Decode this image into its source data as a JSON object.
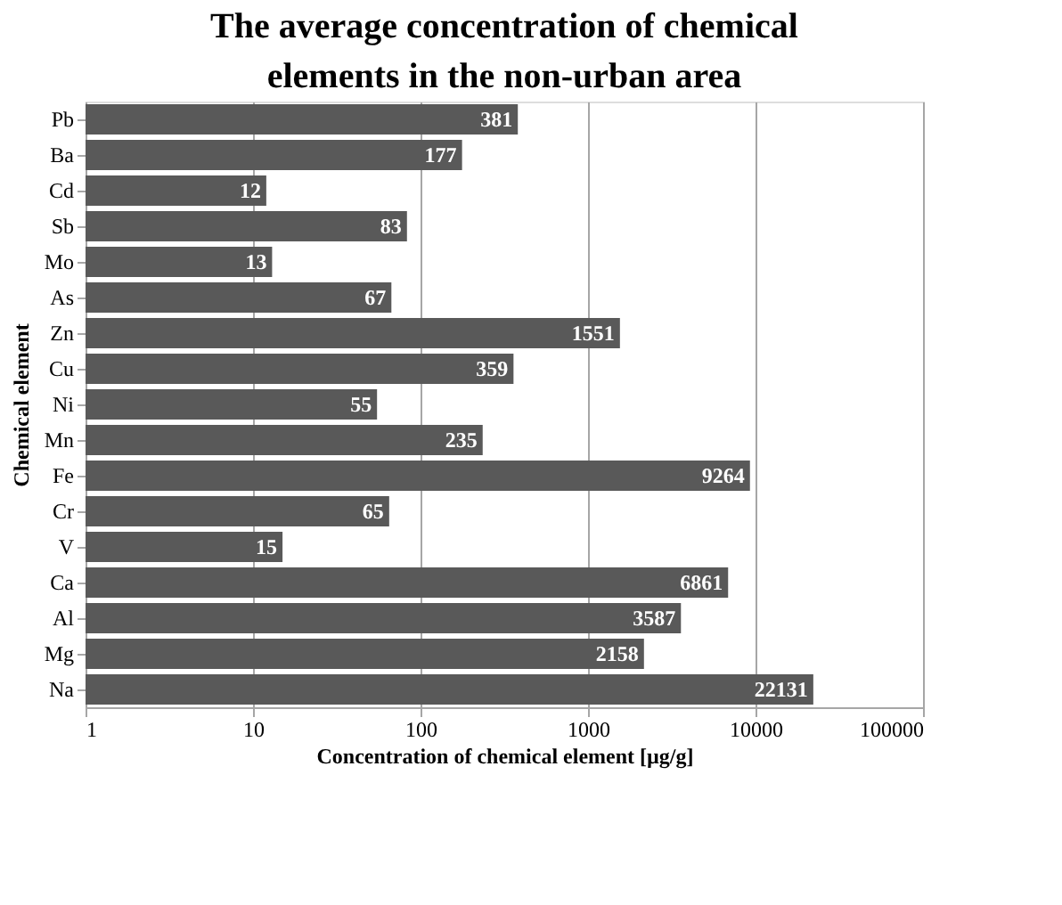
{
  "chart_data": {
    "type": "bar",
    "orientation": "horizontal",
    "title": "The average concentration of chemical elements in the non-urban area",
    "xlabel": "Concentration of chemical element [µg/g]",
    "ylabel": "Chemical element",
    "categories": [
      "Pb",
      "Ba",
      "Cd",
      "Sb",
      "Mo",
      "As",
      "Zn",
      "Cu",
      "Ni",
      "Mn",
      "Fe",
      "Cr",
      "V",
      "Ca",
      "Al",
      "Mg",
      "Na"
    ],
    "values": [
      381,
      177,
      12,
      83,
      13,
      67,
      1551,
      359,
      55,
      235,
      9264,
      65,
      15,
      6861,
      3587,
      2158,
      22131
    ],
    "color": "#595959",
    "log": "x",
    "xlim": [
      1,
      100000
    ],
    "xticks": [
      1,
      10,
      100,
      1000,
      10000,
      100000
    ],
    "grid": "x",
    "data_labels": true
  }
}
